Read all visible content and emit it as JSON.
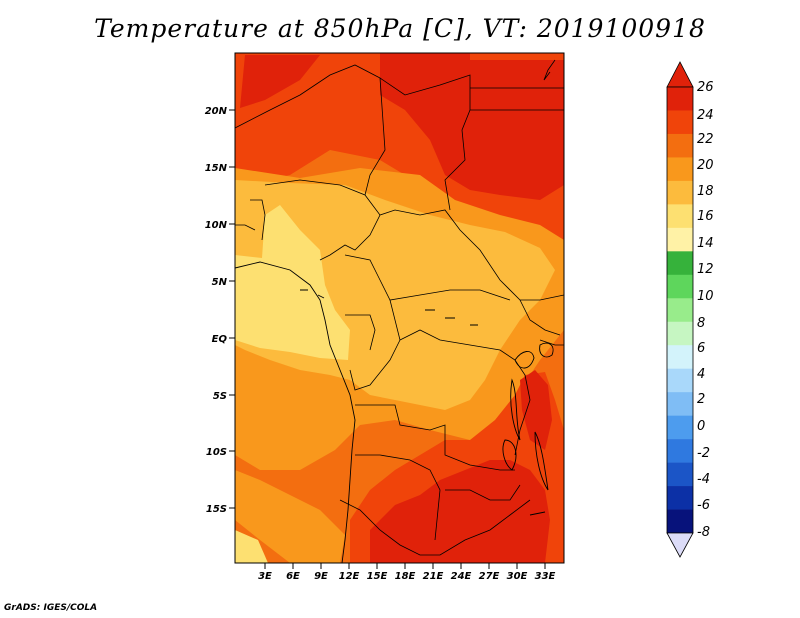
{
  "title": "Temperature at 850hPa [C], VT: 2019100918",
  "credit": "GrADS: IGES/COLA",
  "map": {
    "lat_labels": [
      "20N",
      "15N",
      "10N",
      "5N",
      "EQ",
      "5S",
      "10S",
      "15S"
    ],
    "lon_labels": [
      "3E",
      "6E",
      "9E",
      "12E",
      "15E",
      "18E",
      "21E",
      "24E",
      "27E",
      "30E",
      "33E"
    ]
  },
  "colorbar": {
    "labels": [
      "26",
      "24",
      "22",
      "20",
      "18",
      "16",
      "14",
      "12",
      "10",
      "8",
      "6",
      "4",
      "2",
      "0",
      "-2",
      "-4",
      "-6",
      "-8"
    ],
    "colors": [
      "#e0220a",
      "#f0440a",
      "#f36e10",
      "#f9981c",
      "#fcbb3d",
      "#fde071",
      "#fff2a6",
      "#36b23b",
      "#5ed65c",
      "#98ec8b",
      "#c6f6c2",
      "#d3f3fb",
      "#a9d8fa",
      "#7fbdf5",
      "#4d9cee",
      "#2f79e0",
      "#1b55c7",
      "#0c30a6",
      "#07127b"
    ],
    "upper_tip_color": "#e0220a",
    "lower_tip_color": "#dcdcf8"
  },
  "field_colors": {
    "t26": "#e0220a",
    "t24": "#f0440a",
    "t22": "#f36e10",
    "t20": "#f9981c",
    "t18": "#fcbb3d",
    "t16": "#fde071"
  }
}
